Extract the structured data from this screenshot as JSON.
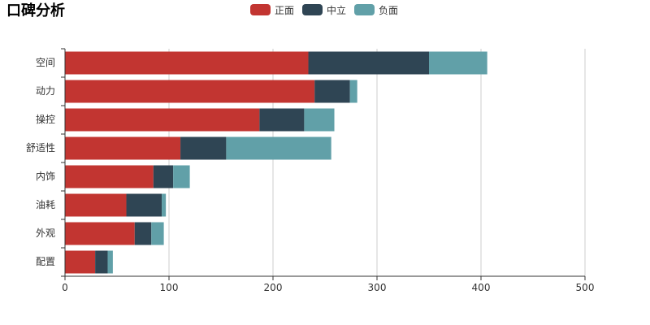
{
  "chart_data": {
    "type": "bar",
    "orientation": "horizontal",
    "stacked": true,
    "title": "口碑分析",
    "categories": [
      "空间",
      "动力",
      "操控",
      "舒适性",
      "内饰",
      "油耗",
      "外观",
      "配置"
    ],
    "series": [
      {
        "name": "正面",
        "color": "#c23531",
        "values": [
          234,
          240,
          187,
          111,
          85,
          59,
          67,
          29
        ]
      },
      {
        "name": "中立",
        "color": "#2f4554",
        "values": [
          116,
          34,
          43,
          44,
          19,
          34,
          16,
          12
        ]
      },
      {
        "name": "负面",
        "color": "#61a0a8",
        "values": [
          56,
          7,
          29,
          101,
          16,
          4,
          12,
          5
        ]
      }
    ],
    "xlim": [
      0,
      500
    ],
    "xticks": [
      0,
      100,
      200,
      300,
      400,
      500
    ],
    "grid": true,
    "legend_position": "top-center"
  }
}
